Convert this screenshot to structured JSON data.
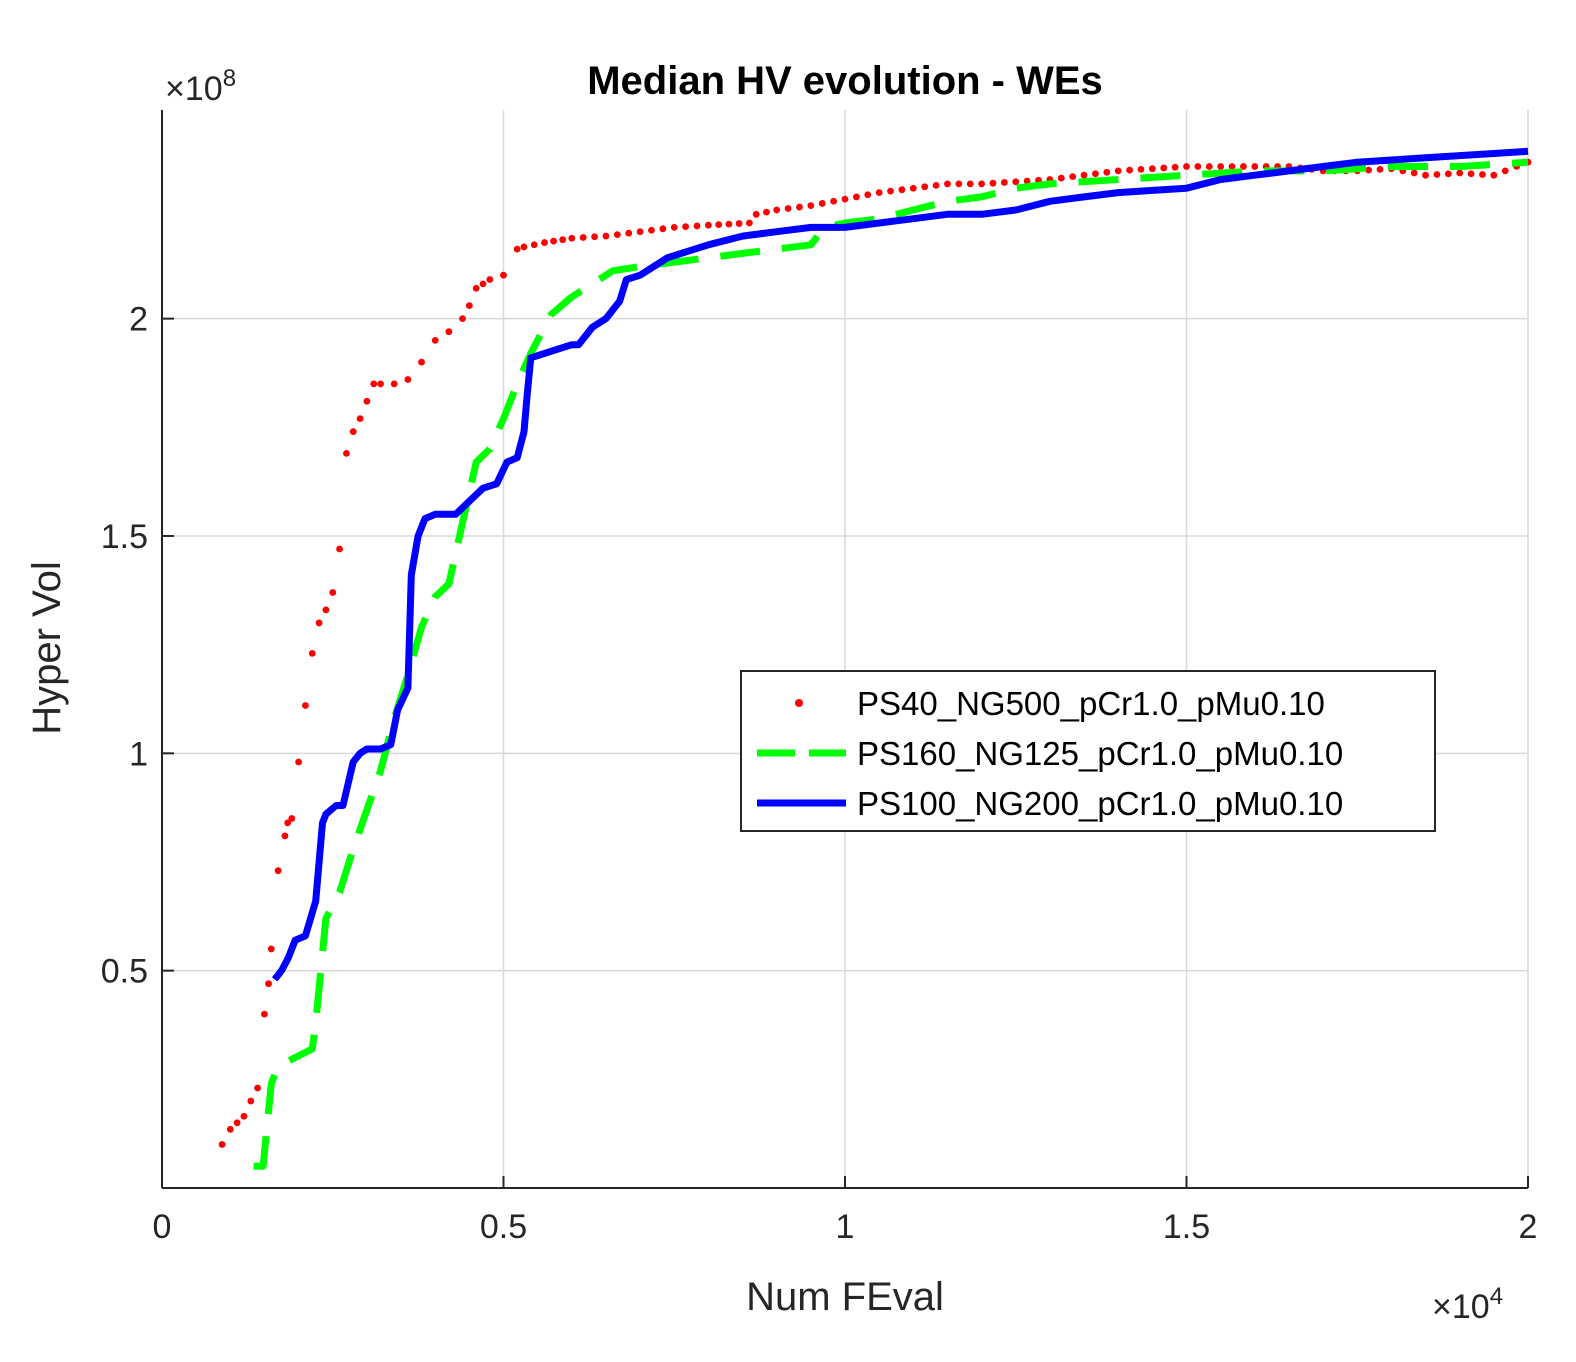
{
  "chart_data": {
    "type": "line",
    "title": "Median HV evolution - WEs",
    "xlabel": "Num FEval",
    "ylabel": "Hyper Vol",
    "x_multiplier": {
      "base": "×10",
      "exp": "4"
    },
    "y_multiplier": {
      "base": "×10",
      "exp": "8"
    },
    "xlim": [
      0,
      20000
    ],
    "ylim": [
      0,
      248000000
    ],
    "x_ticks": [
      0,
      5000,
      10000,
      15000,
      20000
    ],
    "x_tick_labels": [
      "0",
      "0.5",
      "1",
      "1.5",
      "2"
    ],
    "y_ticks": [
      50000000,
      100000000,
      150000000,
      200000000
    ],
    "y_tick_labels": [
      "0.5",
      "1",
      "1.5",
      "2"
    ],
    "grid": true,
    "legend_position": "center-right",
    "series": [
      {
        "name": "PS40_NG500_pCr1.0_pMu0.10",
        "style": "dots",
        "color": "#ff0000",
        "x": [
          880,
          1000,
          1100,
          1200,
          1300,
          1400,
          1500,
          1560,
          1600,
          1700,
          1800,
          1840,
          1900,
          2000,
          2100,
          2200,
          2300,
          2400,
          2500,
          2600,
          2700,
          2800,
          2900,
          3000,
          3100,
          3200,
          3400,
          3600,
          3800,
          4000,
          4200,
          4400,
          4500,
          4600,
          4700,
          4800,
          5000,
          5200,
          5300,
          5600,
          6000,
          6500,
          7000,
          7500,
          8000,
          8600,
          8700,
          9000,
          9500,
          10000,
          10500,
          11000,
          11500,
          12000,
          12500,
          13000,
          13500,
          14000,
          14500,
          15000,
          15500,
          16000,
          16500,
          17000,
          17500,
          18000,
          18500,
          19000,
          19500,
          20000
        ],
        "y": [
          10000000,
          13500000,
          15000000,
          16500000,
          20000000,
          23000000,
          40000000,
          47000000,
          55000000,
          73000000,
          81000000,
          84000000,
          85000000,
          98000000,
          111000000,
          123000000,
          130000000,
          133000000,
          137000000,
          147000000,
          169000000,
          174000000,
          177000000,
          181000000,
          185000000,
          185000000,
          185000000,
          186000000,
          190000000,
          195000000,
          197000000,
          200000000,
          203000000,
          207000000,
          208000000,
          209000000,
          210000000,
          216000000,
          216500000,
          217500000,
          218500000,
          219000000,
          220000000,
          221000000,
          221500000,
          222000000,
          224000000,
          225000000,
          226000000,
          227500000,
          229000000,
          230000000,
          231000000,
          231000000,
          231500000,
          232000000,
          233000000,
          234000000,
          234500000,
          235000000,
          235000000,
          235000000,
          235000000,
          234000000,
          234000000,
          234500000,
          233000000,
          233500000,
          233000000,
          236000000
        ]
      },
      {
        "name": "PS160_NG125_pCr1.0_pMu0.10",
        "style": "dashed",
        "color": "#00ff00",
        "x": [
          1340,
          1480,
          1600,
          1700,
          2200,
          2250,
          2400,
          2600,
          2800,
          3000,
          3200,
          3400,
          3600,
          3800,
          4000,
          4200,
          4400,
          4600,
          4800,
          5000,
          5200,
          5400,
          5700,
          6000,
          6300,
          6600,
          7000,
          7500,
          8000,
          8500,
          9000,
          9500,
          9700,
          10000,
          10500,
          11000,
          11500,
          12000,
          12500,
          13000,
          14000,
          15000,
          16000,
          17000,
          18000,
          19000,
          20000
        ],
        "y": [
          5000000,
          5000000,
          24000000,
          28000000,
          32000000,
          38000000,
          62000000,
          68000000,
          78000000,
          87000000,
          96000000,
          108000000,
          118000000,
          129000000,
          136000000,
          139000000,
          153000000,
          167000000,
          170000000,
          177000000,
          185000000,
          192000000,
          201000000,
          205000000,
          208000000,
          211000000,
          212000000,
          213000000,
          214000000,
          215000000,
          216000000,
          217000000,
          221000000,
          222000000,
          223000000,
          225000000,
          227000000,
          228000000,
          230000000,
          231000000,
          232000000,
          233000000,
          234000000,
          234000000,
          235000000,
          235000000,
          236000000
        ]
      },
      {
        "name": "PS100_NG200_pCr1.0_pMu0.10",
        "style": "solid",
        "color": "#0000ff",
        "x": [
          1650,
          1750,
          1850,
          1950,
          2100,
          2250,
          2350,
          2400,
          2550,
          2650,
          2800,
          2900,
          3000,
          3200,
          3350,
          3450,
          3600,
          3650,
          3750,
          3850,
          4000,
          4300,
          4500,
          4700,
          4900,
          5050,
          5200,
          5300,
          5350,
          5400,
          5600,
          5800,
          6000,
          6100,
          6300,
          6500,
          6700,
          6800,
          7000,
          7200,
          7400,
          7600,
          8000,
          8500,
          9000,
          9500,
          10000,
          10500,
          11000,
          11500,
          12000,
          12500,
          13000,
          13500,
          14000,
          14500,
          15000,
          15500,
          16000,
          16500,
          17000,
          17500,
          18000,
          18500,
          19000,
          19500,
          20000
        ],
        "y": [
          48000000,
          50000000,
          53000000,
          57000000,
          58000000,
          66000000,
          84000000,
          86000000,
          88000000,
          88000000,
          98000000,
          100000000,
          101000000,
          101000000,
          102000000,
          110000000,
          115000000,
          141000000,
          150000000,
          154000000,
          155000000,
          155000000,
          158000000,
          161000000,
          162000000,
          167000000,
          168000000,
          174000000,
          183000000,
          191000000,
          192000000,
          193000000,
          194000000,
          194000000,
          198000000,
          200000000,
          204000000,
          209000000,
          210000000,
          212000000,
          214000000,
          215000000,
          217000000,
          219000000,
          220000000,
          221000000,
          221000000,
          222000000,
          223000000,
          224000000,
          224000000,
          225000000,
          227000000,
          228000000,
          229000000,
          229500000,
          230000000,
          232000000,
          233000000,
          234000000,
          235000000,
          236000000,
          236500000,
          237000000,
          237500000,
          238000000,
          238500000
        ]
      }
    ]
  }
}
